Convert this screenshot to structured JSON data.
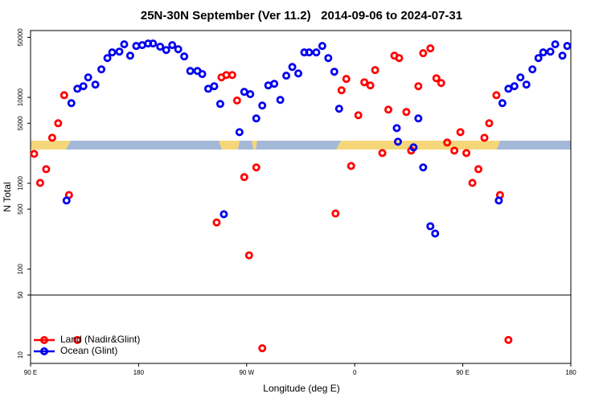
{
  "chart_data": {
    "type": "scatter",
    "title": "25N-30N September (Ver 11.2)   2014-09-06 to 2024-07-31",
    "x_label": "Longitude (deg E)",
    "y_label": "N Total",
    "xlim": [
      90,
      540
    ],
    "xticks": [
      {
        "value": 90,
        "label": "90 E"
      },
      180,
      {
        "value": 270,
        "label": "90 W"
      },
      {
        "value": 360,
        "label": "0"
      },
      {
        "value": 450,
        "label": "90 E"
      },
      {
        "value": 540,
        "label": "180"
      }
    ],
    "ylim": [
      8,
      60000
    ],
    "yticks": [
      10,
      50,
      100,
      500,
      1000,
      5000,
      10000,
      50000
    ],
    "log_y": true,
    "hline": 50,
    "legend": "bottom-left",
    "series": [
      {
        "name": "Land (Nadir&Glint)",
        "color": "#ff0000",
        "x": [
          93,
          98,
          103,
          108,
          113,
          118,
          122,
          129,
          245,
          249,
          253,
          258,
          262,
          268,
          272,
          278,
          283,
          344,
          349,
          353,
          357,
          363,
          368,
          373,
          377,
          383,
          388,
          393,
          397,
          403,
          407,
          413,
          417,
          423,
          428,
          432,
          437,
          443,
          448,
          453,
          458,
          463,
          468,
          472,
          478,
          481,
          488
        ],
        "values": [
          2200,
          1010,
          1460,
          3390,
          5000,
          10600,
          730,
          15,
          350,
          17100,
          18200,
          18200,
          9200,
          1180,
          145,
          1530,
          12,
          445,
          12100,
          16400,
          1590,
          6200,
          15000,
          13800,
          20800,
          2250,
          7200,
          30600,
          28700,
          6760,
          2400,
          13500,
          32700,
          37200,
          16700,
          14700,
          2980,
          2400,
          3940,
          2250,
          1010,
          1460,
          3390,
          5000,
          10600,
          730,
          15
        ]
      },
      {
        "name": "Ocean (Glint)",
        "color": "#0000ee",
        "x": [
          120,
          124,
          129,
          134,
          138,
          144,
          149,
          154,
          158,
          164,
          168,
          173,
          178,
          183,
          188,
          192,
          198,
          203,
          208,
          213,
          218,
          223,
          229,
          233,
          238,
          243,
          248,
          251,
          264,
          268,
          273,
          278,
          283,
          288,
          293,
          298,
          303,
          308,
          313,
          318,
          322,
          328,
          333,
          338,
          343,
          347,
          395,
          396,
          409,
          413,
          417,
          423,
          427,
          480,
          483,
          488,
          493,
          498,
          503,
          508,
          513,
          517,
          523,
          527,
          533,
          537
        ],
        "values": [
          630,
          8570,
          12600,
          13500,
          17100,
          14100,
          21200,
          28700,
          33400,
          34100,
          41500,
          30600,
          39700,
          40600,
          42400,
          42400,
          38900,
          35600,
          40600,
          36400,
          30000,
          20300,
          20300,
          18700,
          12600,
          13500,
          8400,
          436,
          3940,
          11600,
          10900,
          5690,
          8040,
          13800,
          14400,
          9350,
          17900,
          22600,
          19000,
          33400,
          33400,
          33400,
          39700,
          28700,
          19900,
          7380,
          4390,
          3050,
          2620,
          5690,
          1530,
          316,
          260,
          630,
          8570,
          12600,
          13500,
          17100,
          14100,
          21200,
          28700,
          33400,
          34100,
          41500,
          30600,
          39700
        ]
      }
    ]
  }
}
